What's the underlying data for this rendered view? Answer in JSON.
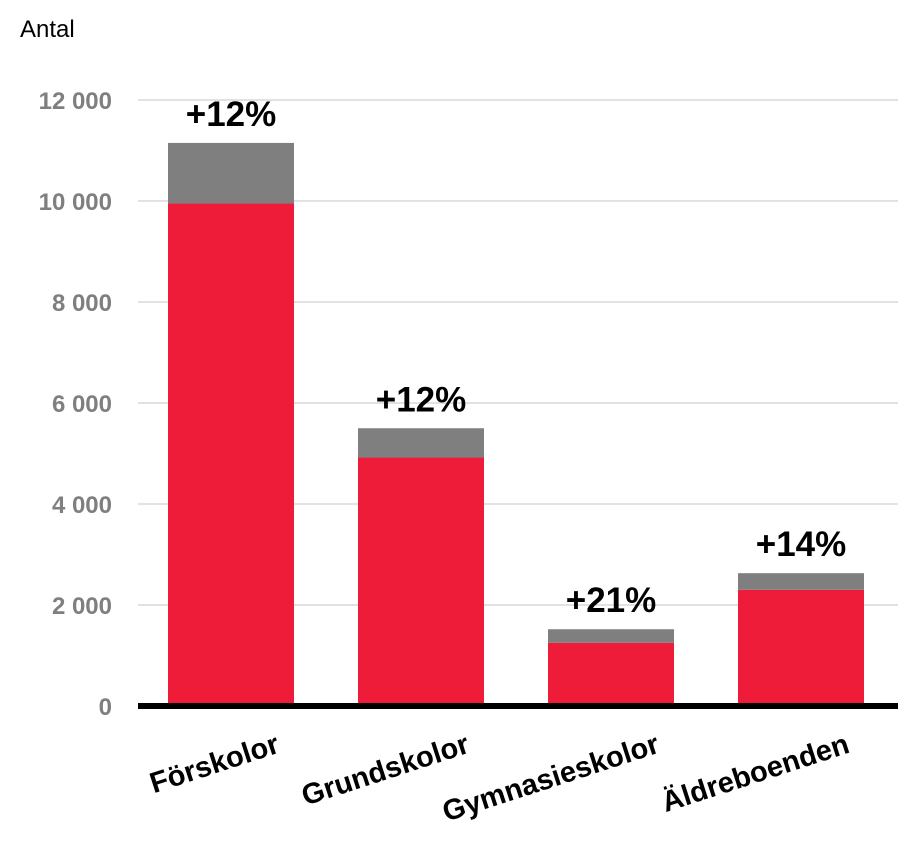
{
  "chart_data": {
    "type": "bar",
    "stacked": true,
    "ylabel": "Antal",
    "ylim": [
      0,
      12000
    ],
    "yticks": [
      0,
      2000,
      4000,
      6000,
      8000,
      10000,
      12000
    ],
    "ytick_labels": [
      "0",
      "2 000",
      "4 000",
      "6 000",
      "8 000",
      "10 000",
      "12 000"
    ],
    "grid": true,
    "categories": [
      "Förskolor",
      "Grundskolor",
      "Gymnasieskolor",
      "Äldreboenden"
    ],
    "series": [
      {
        "color": "#ee1c39",
        "values": [
          9950,
          4920,
          1250,
          2300
        ]
      },
      {
        "color": "#7f7f7f",
        "values": [
          1200,
          580,
          270,
          330
        ]
      }
    ],
    "annotations": [
      "+12%",
      "+12%",
      "+21%",
      "+14%"
    ]
  }
}
